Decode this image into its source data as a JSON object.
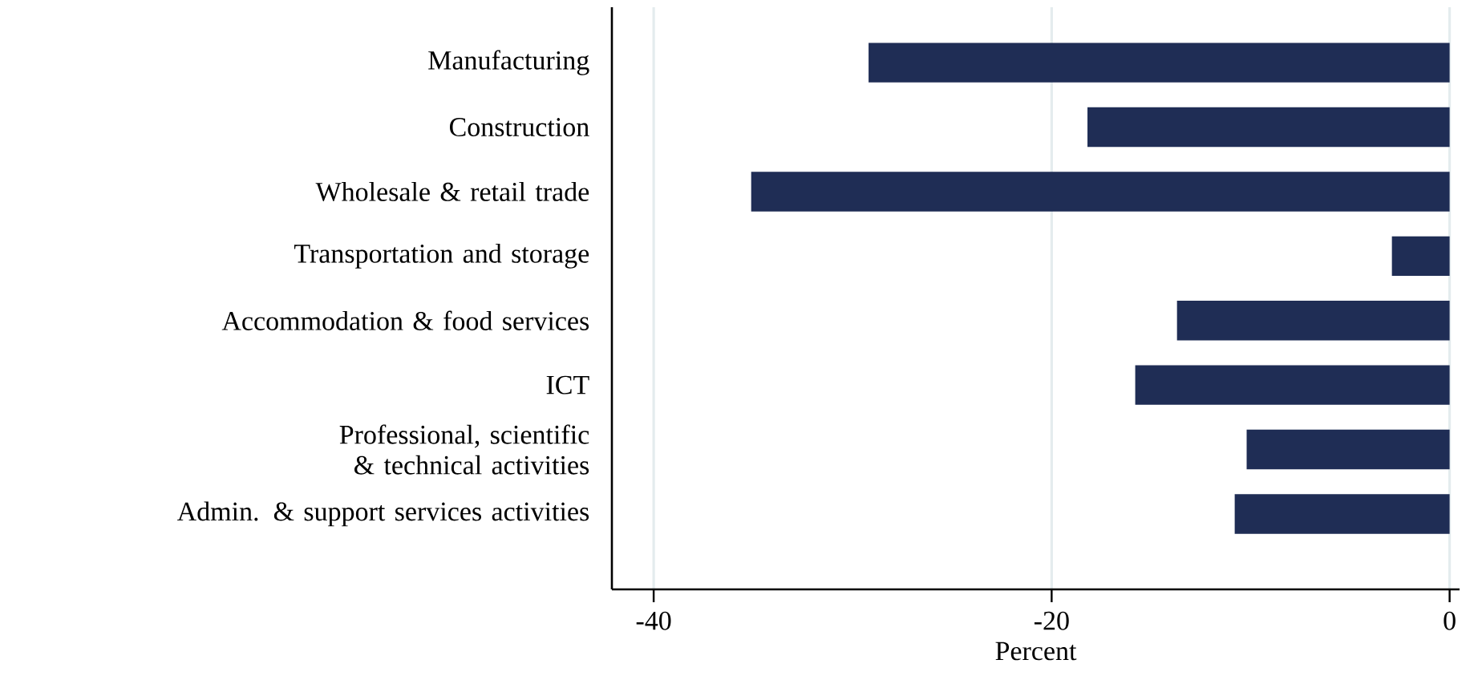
{
  "chart_data": {
    "type": "bar",
    "orientation": "horizontal",
    "xlabel": "Percent",
    "categories": [
      "Manufacturing",
      "Construction",
      "Wholesale & retail trade",
      "Transportation and storage",
      "Accommodation & food services",
      "ICT",
      "Professional, scientific & technical activities",
      "Admin. & support services activities"
    ],
    "values": [
      -29.2,
      -18.2,
      -35.1,
      -2.9,
      -13.7,
      -15.8,
      -10.2,
      -10.8
    ],
    "color": "#1f2d55",
    "xlim": [
      -42.1,
      0.5
    ],
    "xticks": [
      -40,
      -20,
      0
    ],
    "grid": "x"
  }
}
